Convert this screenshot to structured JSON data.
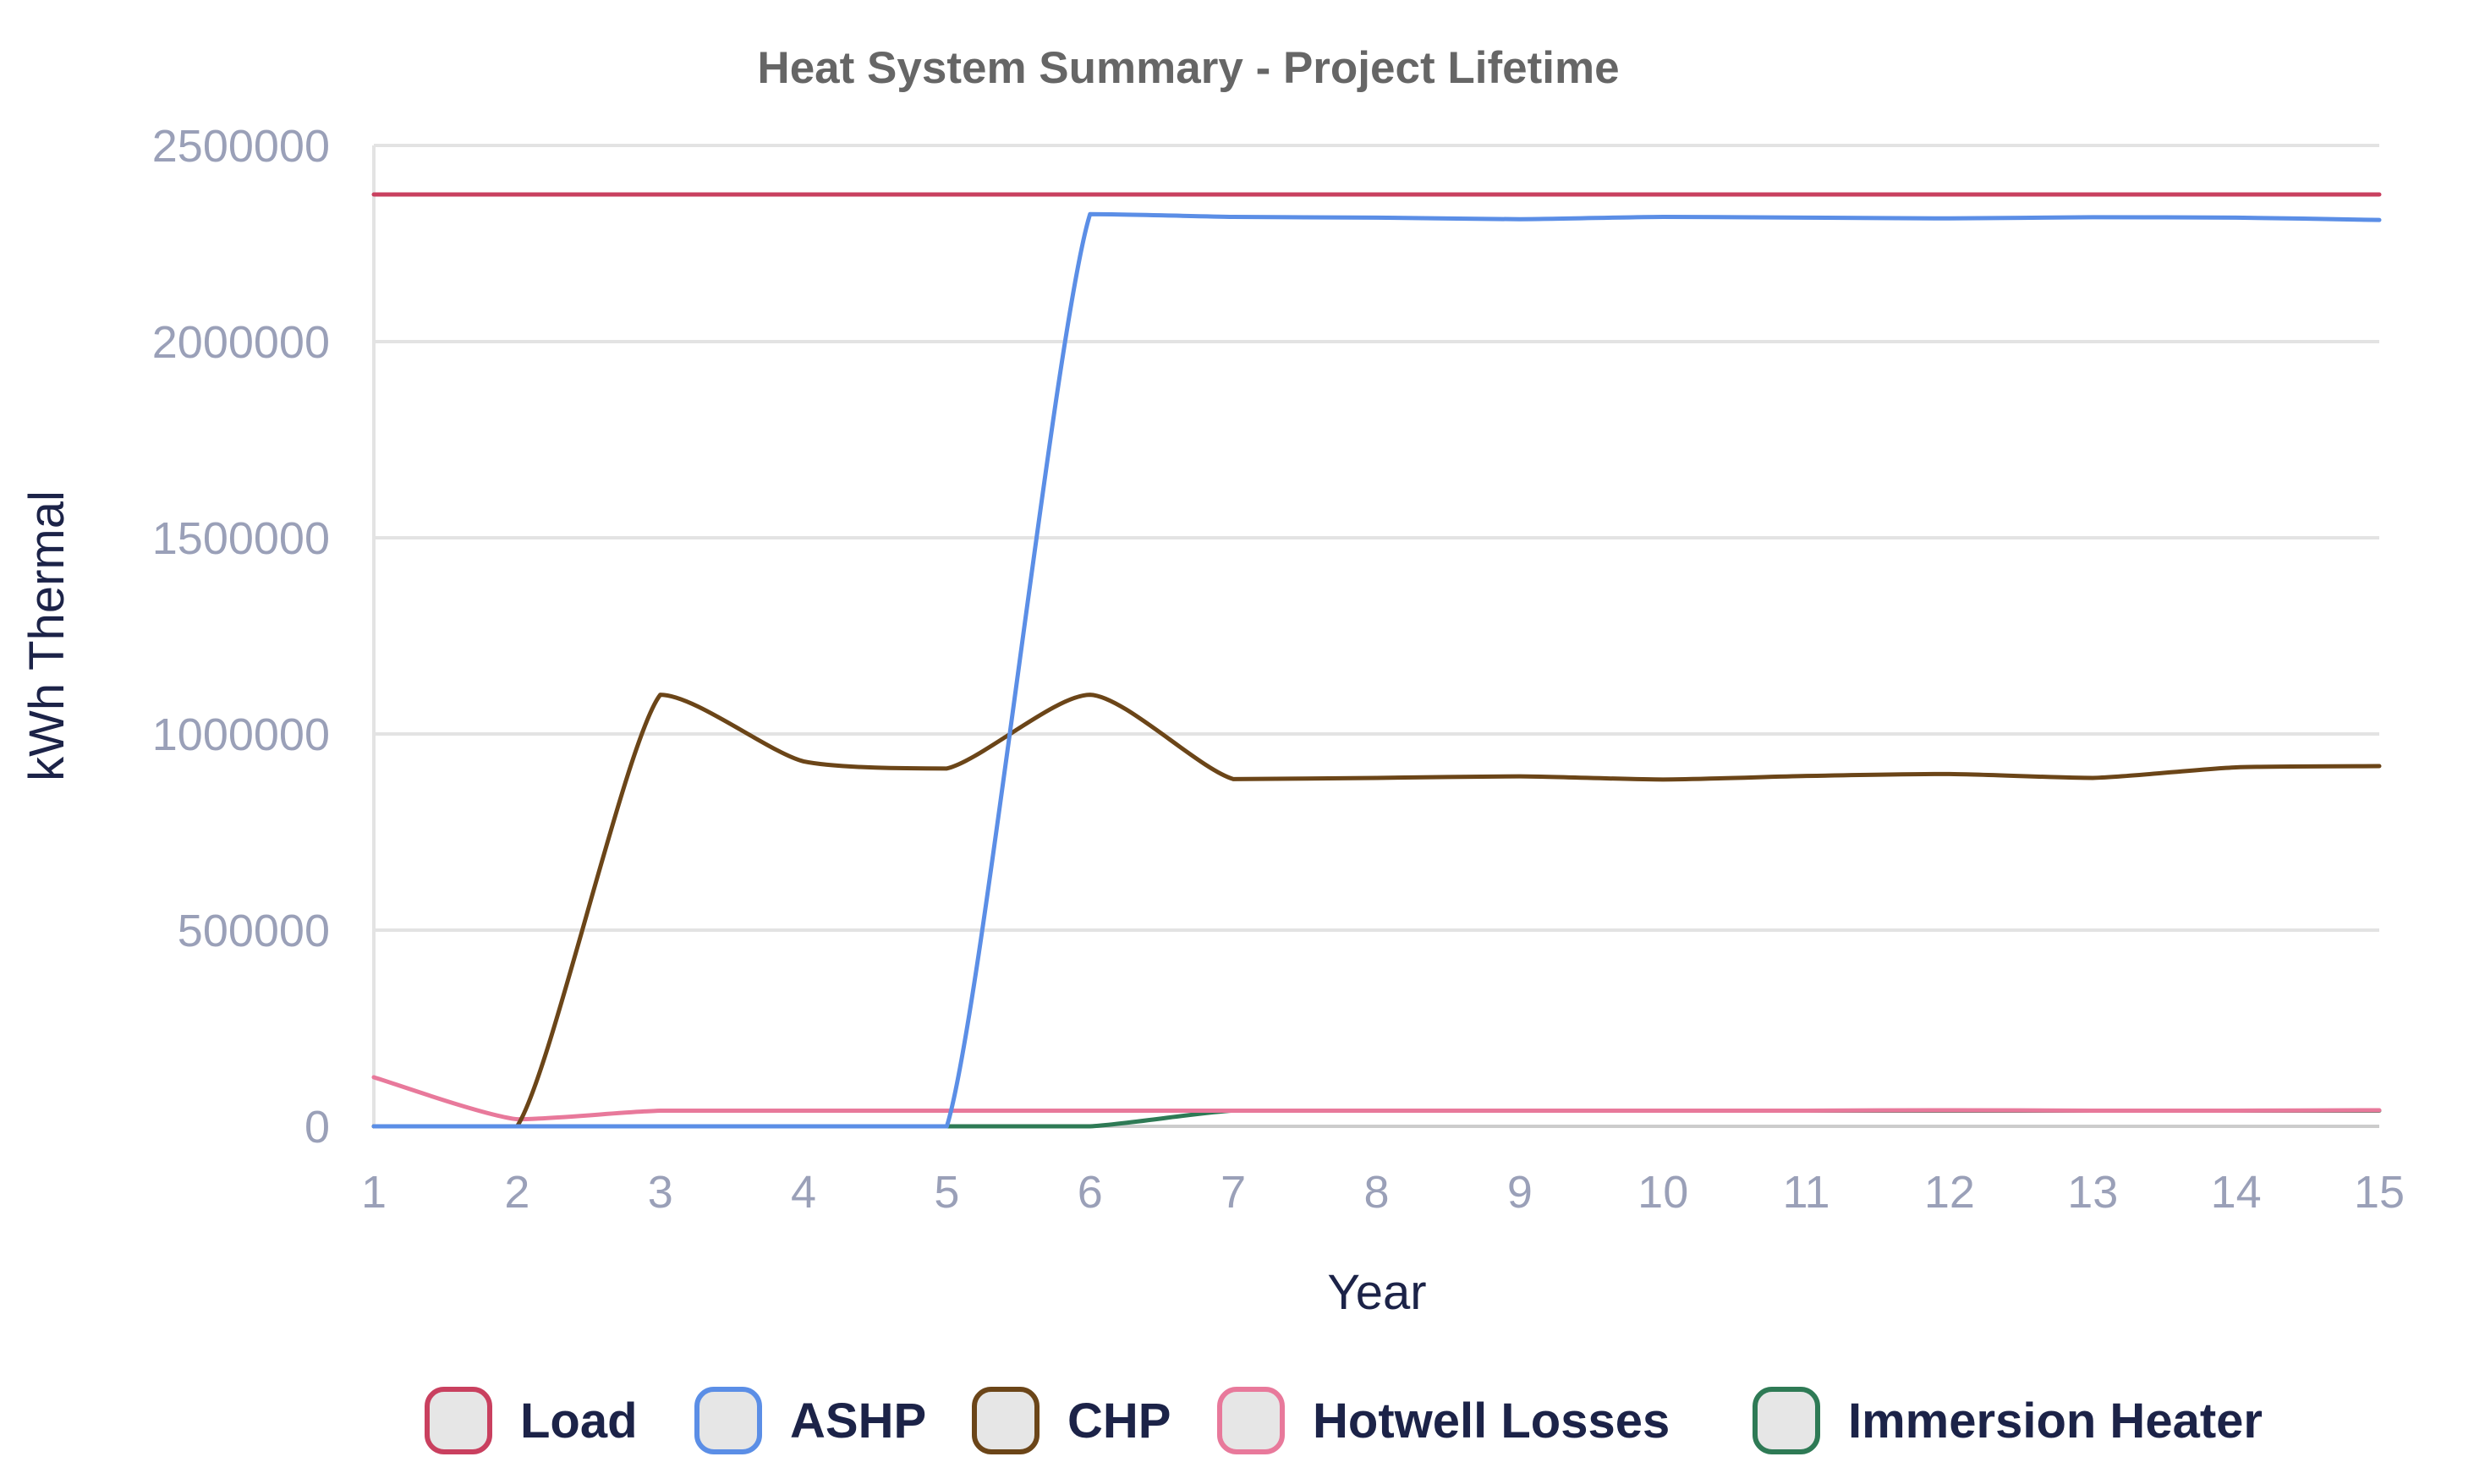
{
  "chart_data": {
    "type": "line",
    "title": "Heat System Summary - Project Lifetime",
    "xlabel": "Year",
    "ylabel": "kWh Thermal",
    "x": [
      1,
      2,
      3,
      4,
      5,
      6,
      7,
      8,
      9,
      10,
      11,
      12,
      13,
      14,
      15
    ],
    "ylim": [
      0,
      2500000
    ],
    "yticks": [
      0,
      500000,
      1000000,
      1500000,
      2000000,
      2500000
    ],
    "grid": true,
    "legend": "bottom",
    "series": [
      {
        "name": "Load",
        "color": "#c9405f",
        "values": [
          2375000,
          2375000,
          2375000,
          2375000,
          2375000,
          2375000,
          2375000,
          2375000,
          2375000,
          2375000,
          2375000,
          2375000,
          2375000,
          2375000,
          2375000
        ]
      },
      {
        "name": "ASHP",
        "color": "#5b8ee6",
        "values": [
          0,
          0,
          0,
          0,
          0,
          2325000,
          2318000,
          2316000,
          2312000,
          2318000,
          2316000,
          2314000,
          2317000,
          2316000,
          2310000
        ]
      },
      {
        "name": "CHP",
        "color": "#6b4518",
        "values": [
          0,
          0,
          1100000,
          930000,
          912000,
          1100000,
          885000,
          888000,
          892000,
          884000,
          893000,
          898000,
          888000,
          915000,
          918000
        ]
      },
      {
        "name": "Hotwell Losses",
        "color": "#e8799b",
        "values": [
          125000,
          18000,
          40000,
          40000,
          40000,
          40000,
          40000,
          40000,
          40000,
          40000,
          40000,
          41000,
          40000,
          40000,
          41000
        ]
      },
      {
        "name": "Immersion Heater",
        "color": "#2e7a55",
        "values": [
          0,
          0,
          0,
          0,
          0,
          0,
          40000,
          40000,
          40000,
          40000,
          40000,
          40000,
          40000,
          40000,
          40000
        ]
      }
    ]
  }
}
